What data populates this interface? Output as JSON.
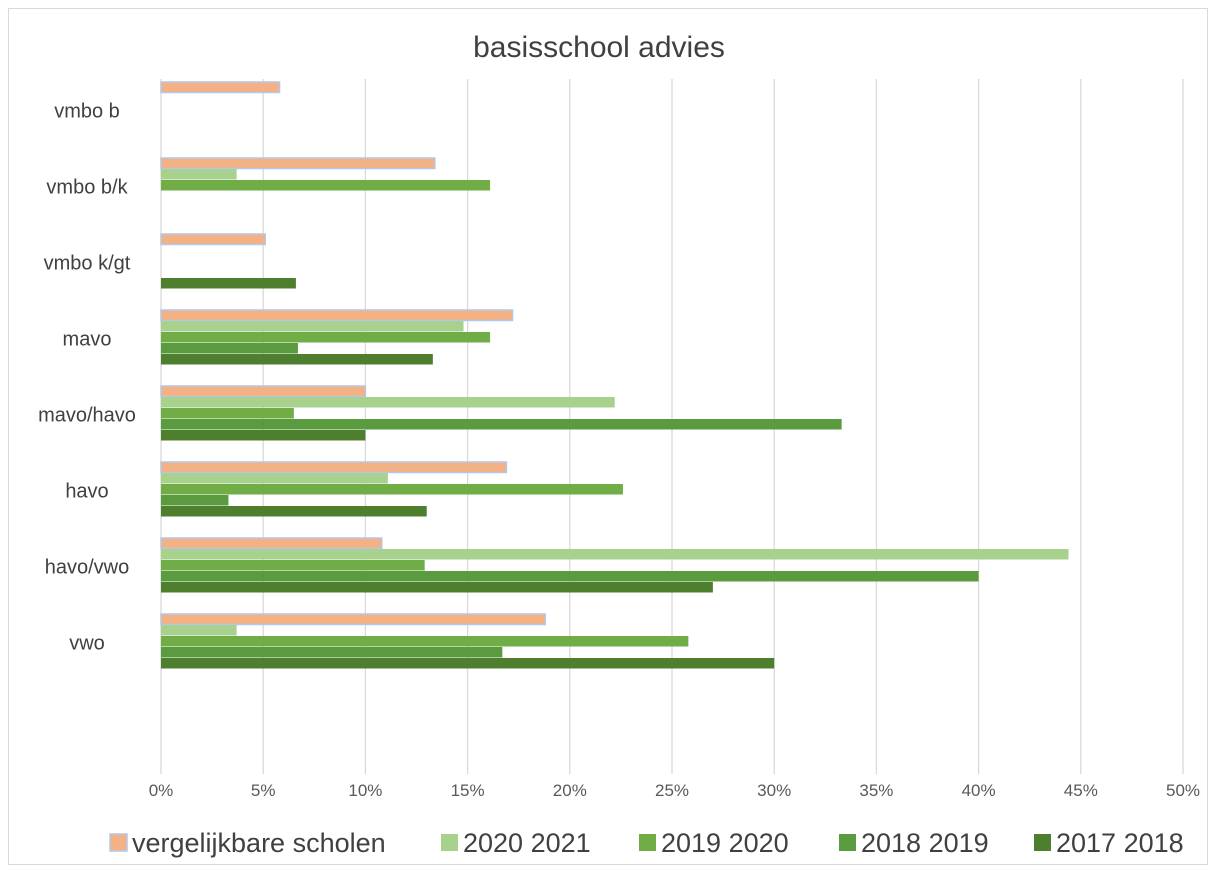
{
  "chart_data": {
    "type": "bar",
    "orientation": "horizontal",
    "title": "basisschool advies",
    "categories": [
      "vmbo b",
      "vmbo b/k",
      "vmbo k/gt",
      "mavo",
      "mavo/havo",
      "havo",
      "havo/vwo",
      "vwo"
    ],
    "xlim": [
      0,
      0.5
    ],
    "x_ticks": [
      0,
      0.05,
      0.1,
      0.15,
      0.2,
      0.25,
      0.3,
      0.35,
      0.4,
      0.45,
      0.5
    ],
    "x_tick_labels": [
      "0%",
      "5%",
      "10%",
      "15%",
      "20%",
      "25%",
      "30%",
      "35%",
      "40%",
      "45%",
      "50%"
    ],
    "grid": "vertical",
    "legend_position": "bottom",
    "series": [
      {
        "name": "vergelijkbare scholen",
        "color": "#f4b183",
        "values": [
          0.058,
          0.134,
          0.051,
          0.172,
          0.1,
          0.169,
          0.108,
          0.188
        ]
      },
      {
        "name": "2020 2021",
        "color": "#a9d18e",
        "values": [
          0,
          0.037,
          0,
          0.148,
          0.222,
          0.111,
          0.444,
          0.037
        ]
      },
      {
        "name": "2019 2020",
        "color": "#70ad47",
        "values": [
          0,
          0.161,
          0,
          0.161,
          0.065,
          0.226,
          0.129,
          0.258
        ]
      },
      {
        "name": "2018 2019",
        "color": "#5b9b3f",
        "values": [
          0,
          0,
          0,
          0.067,
          0.333,
          0.033,
          0.4,
          0.167
        ]
      },
      {
        "name": "2017 2018",
        "color": "#4e7f2f",
        "values": [
          0,
          0,
          0.066,
          0.133,
          0.1,
          0.13,
          0.27,
          0.3
        ]
      }
    ]
  }
}
